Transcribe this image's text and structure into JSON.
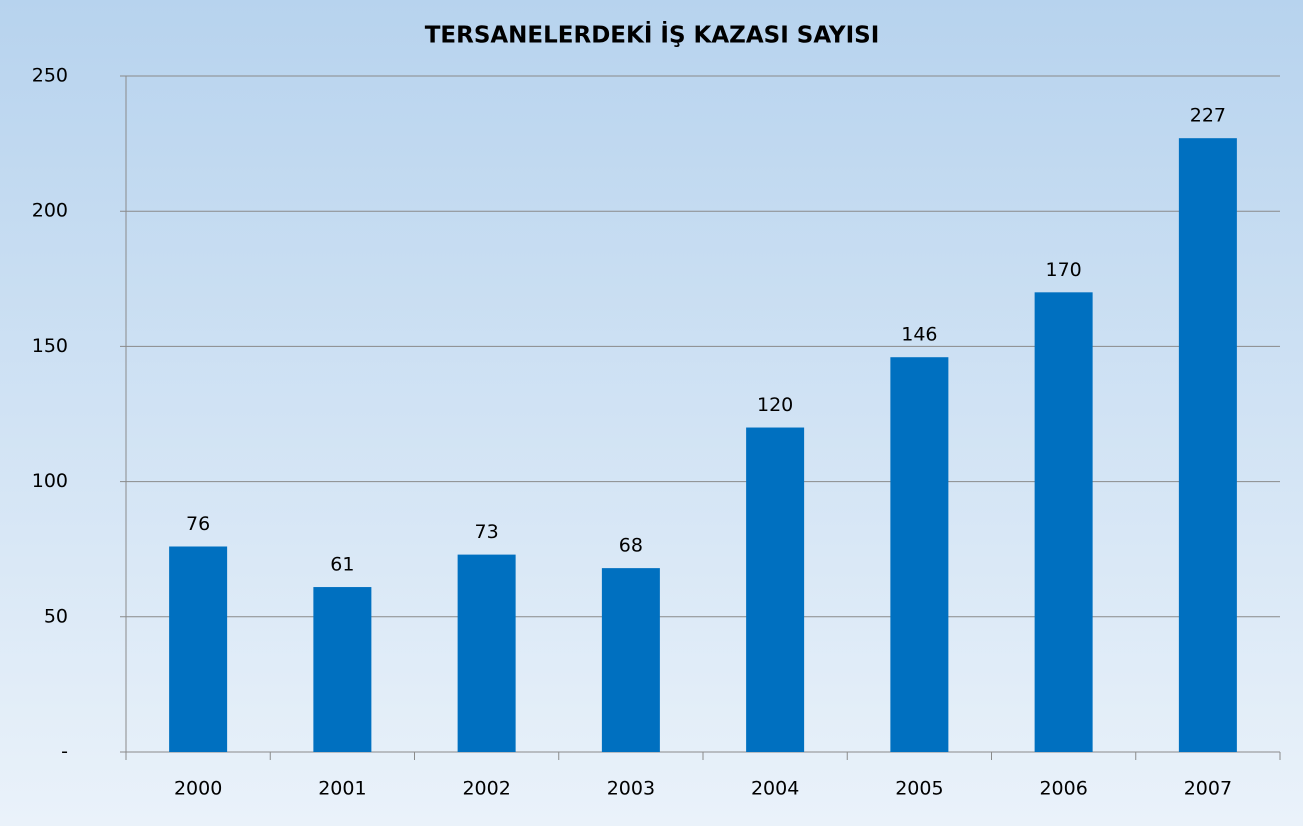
{
  "chart_data": {
    "type": "bar",
    "title": "TERSANELERDEKİ İŞ KAZASI SAYISI",
    "categories": [
      "2000",
      "2001",
      "2002",
      "2003",
      "2004",
      "2005",
      "2006",
      "2007"
    ],
    "values": [
      76,
      61,
      73,
      68,
      120,
      146,
      170,
      227
    ],
    "color": "#0070c0",
    "ylim": [
      0,
      250
    ],
    "yticks": [
      {
        "value": 0,
        "label": "-"
      },
      50,
      100,
      150,
      200,
      250
    ],
    "grid": true
  }
}
